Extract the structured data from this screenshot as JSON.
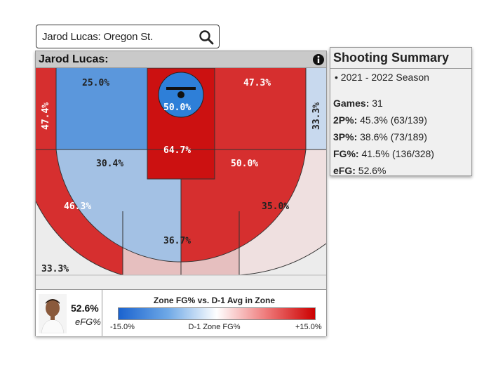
{
  "search": {
    "value": "Jarod Lucas: Oregon St."
  },
  "card": {
    "title": "Jarod Lucas:",
    "efg_value": "52.6%",
    "efg_label": "eFG%"
  },
  "zones": {
    "left_corner": "47.4%",
    "left_top": "25.0%",
    "restricted": "50.0%",
    "paint": "64.7%",
    "right_top": "47.3%",
    "right_corner": "33.3%",
    "mid_center": "30.4%",
    "mid_right": "50.0%",
    "three_left_wing": "46.3%",
    "three_center": "36.7%",
    "three_right_wing": "35.0%",
    "heave": "33.3%"
  },
  "colors": {
    "dark_red": "#cc1111",
    "red": "#d62f2f",
    "light_blue": "#a3c1e4",
    "blue": "#5b97dc",
    "pink": "#e6bfbf",
    "very_light": "#efe0e0",
    "light_gray": "#ececec"
  },
  "legend": {
    "title": "Zone FG% vs. D-1 Avg in Zone",
    "min": "-15.0%",
    "mid": "D-1 Zone FG%",
    "max": "+15.0%"
  },
  "summary": {
    "title": "Shooting Summary",
    "season": "2021 - 2022 Season",
    "rows": [
      {
        "label": "Games:",
        "value": "31"
      },
      {
        "label": "2P%:",
        "value": "45.3% (63/139)"
      },
      {
        "label": "3P%:",
        "value": "38.6% (73/189)"
      },
      {
        "label": "FG%:",
        "value": "41.5% (136/328)"
      },
      {
        "label": "eFG:",
        "value": "52.6%"
      }
    ]
  }
}
